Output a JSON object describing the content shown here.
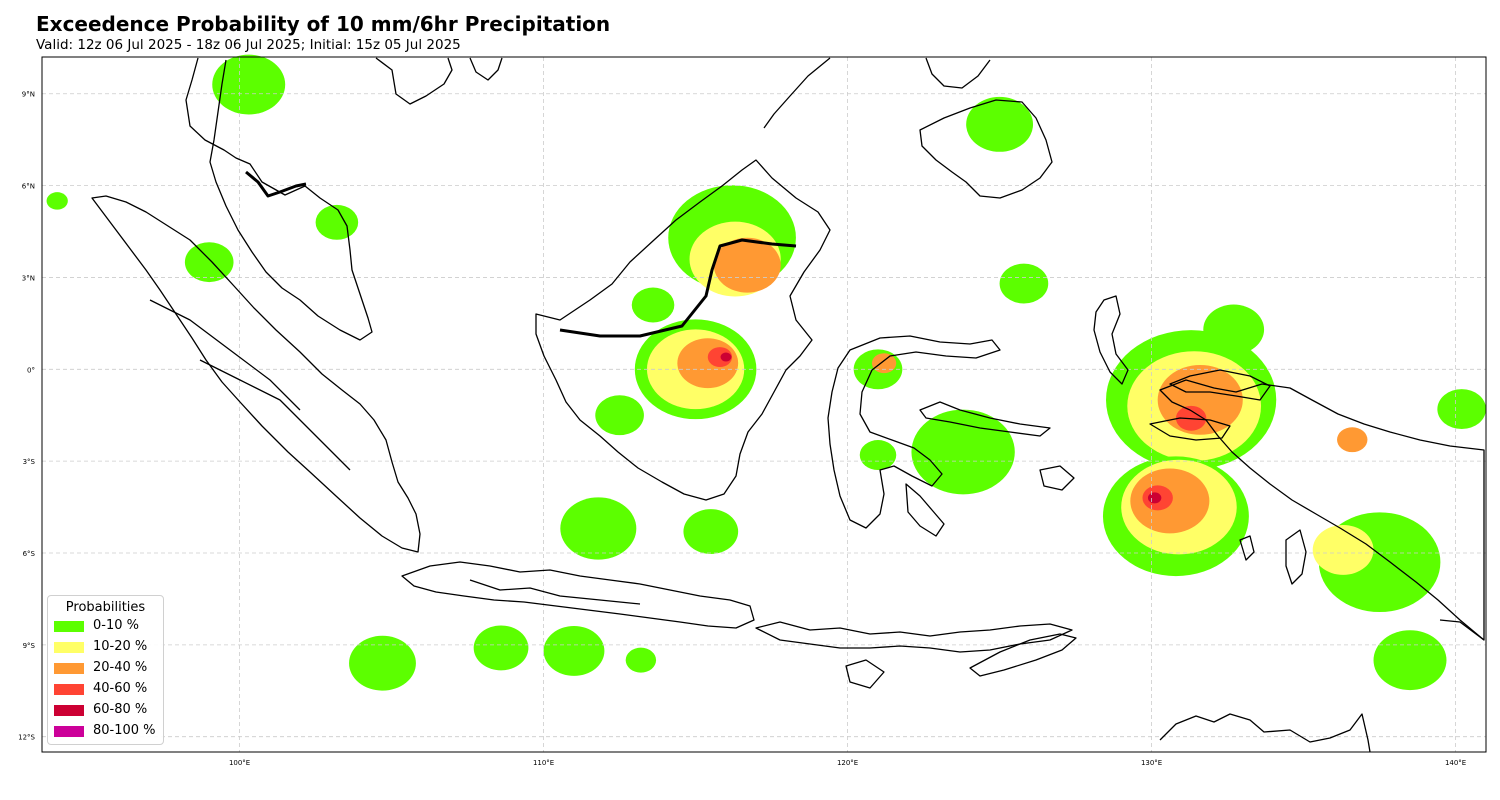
{
  "header": {
    "title": "Exceedence Probability of 10 mm/6hr Precipitation",
    "subtitle": "Valid: 12z 06 Jul 2025 - 18z 06 Jul 2025; Initial: 15z 05 Jul 2025"
  },
  "map": {
    "lon_range": [
      93.5,
      141.0
    ],
    "lat_range": [
      -12.5,
      10.2
    ],
    "lon_ticks": [
      {
        "value": 100,
        "label": "100°E"
      },
      {
        "value": 110,
        "label": "110°E"
      },
      {
        "value": 120,
        "label": "120°E"
      },
      {
        "value": 130,
        "label": "130°E"
      },
      {
        "value": 140,
        "label": "140°E"
      }
    ],
    "lat_ticks": [
      {
        "value": 9,
        "label": "9°N"
      },
      {
        "value": 6,
        "label": "6°N"
      },
      {
        "value": 3,
        "label": "3°N"
      },
      {
        "value": 0,
        "label": "0°"
      },
      {
        "value": -3,
        "label": "3°S"
      },
      {
        "value": -6,
        "label": "6°S"
      },
      {
        "value": -9,
        "label": "9°S"
      },
      {
        "value": -12,
        "label": "12°S"
      }
    ],
    "grid": true,
    "gridline_color": "#cccccc",
    "coastline_color": "#000000"
  },
  "legend": {
    "title": "Probabilities",
    "placement": "lower-left",
    "items": [
      {
        "label": "0-10 %",
        "color": "#5cff00"
      },
      {
        "label": "10-20 %",
        "color": "#ffff66"
      },
      {
        "label": "20-40 %",
        "color": "#ff9933"
      },
      {
        "label": "40-60 %",
        "color": "#ff4433"
      },
      {
        "label": "60-80 %",
        "color": "#cc0033"
      },
      {
        "label": "80-100 %",
        "color": "#cc0099"
      }
    ]
  },
  "precip_areas": [
    {
      "name": "w-sumatra",
      "cls": 0,
      "lon": 94.0,
      "lat": 5.5,
      "r": 0.35
    },
    {
      "name": "malaya-nw",
      "cls": 0,
      "lon": 100.3,
      "lat": 9.3,
      "r": 1.2
    },
    {
      "name": "malaya-e",
      "cls": 0,
      "lon": 103.2,
      "lat": 4.8,
      "r": 0.7
    },
    {
      "name": "n-sumatra",
      "cls": 0,
      "lon": 99.0,
      "lat": 3.5,
      "r": 0.8
    },
    {
      "name": "borneo-nw",
      "cls": 0,
      "lon": 113.6,
      "lat": 2.1,
      "r": 0.7
    },
    {
      "name": "borneo-n",
      "cls": 0,
      "lon": 116.2,
      "lat": 4.3,
      "r": 2.1
    },
    {
      "name": "borneo-n-y",
      "cls": 1,
      "lon": 116.3,
      "lat": 3.6,
      "r": 1.5
    },
    {
      "name": "borneo-n-o",
      "cls": 2,
      "lon": 116.7,
      "lat": 3.4,
      "r": 1.1
    },
    {
      "name": "borneo-c",
      "cls": 0,
      "lon": 115.0,
      "lat": 0.0,
      "r": 2.0
    },
    {
      "name": "borneo-c-y",
      "cls": 1,
      "lon": 115.0,
      "lat": 0.0,
      "r": 1.6
    },
    {
      "name": "borneo-c-o",
      "cls": 2,
      "lon": 115.4,
      "lat": 0.2,
      "r": 1.0
    },
    {
      "name": "borneo-c-r",
      "cls": 3,
      "lon": 115.8,
      "lat": 0.4,
      "r": 0.4
    },
    {
      "name": "borneo-c-d",
      "cls": 4,
      "lon": 116.0,
      "lat": 0.4,
      "r": 0.18
    },
    {
      "name": "borneo-sw",
      "cls": 0,
      "lon": 112.5,
      "lat": -1.5,
      "r": 0.8
    },
    {
      "name": "java-sea-n",
      "cls": 0,
      "lon": 111.8,
      "lat": -5.2,
      "r": 1.25
    },
    {
      "name": "java-sea-e",
      "cls": 0,
      "lon": 115.5,
      "lat": -5.3,
      "r": 0.9
    },
    {
      "name": "south-a",
      "cls": 0,
      "lon": 104.7,
      "lat": -9.6,
      "r": 1.1
    },
    {
      "name": "south-b",
      "cls": 0,
      "lon": 108.6,
      "lat": -9.1,
      "r": 0.9
    },
    {
      "name": "south-c",
      "cls": 0,
      "lon": 111.0,
      "lat": -9.2,
      "r": 1.0
    },
    {
      "name": "south-d",
      "cls": 0,
      "lon": 113.2,
      "lat": -9.5,
      "r": 0.5
    },
    {
      "name": "sulawesi-n",
      "cls": 0,
      "lon": 121.0,
      "lat": 0.0,
      "r": 0.8
    },
    {
      "name": "sulawesi-n-o",
      "cls": 2,
      "lon": 121.2,
      "lat": 0.2,
      "r": 0.4
    },
    {
      "name": "sulawesi-c",
      "cls": 0,
      "lon": 121.0,
      "lat": -2.8,
      "r": 0.6
    },
    {
      "name": "molucca-sea",
      "cls": 0,
      "lon": 123.8,
      "lat": -2.7,
      "r": 1.7
    },
    {
      "name": "mindanao",
      "cls": 0,
      "lon": 125.0,
      "lat": 8.0,
      "r": 1.1
    },
    {
      "name": "halmahera",
      "cls": 0,
      "lon": 131.3,
      "lat": -1.0,
      "r": 2.8
    },
    {
      "name": "halmahera-y",
      "cls": 1,
      "lon": 131.4,
      "lat": -1.2,
      "r": 2.2
    },
    {
      "name": "halmahera-o",
      "cls": 2,
      "lon": 131.6,
      "lat": -1.0,
      "r": 1.4
    },
    {
      "name": "halmahera-r",
      "cls": 3,
      "lon": 131.3,
      "lat": -1.6,
      "r": 0.5
    },
    {
      "name": "banda-sea",
      "cls": 0,
      "lon": 130.8,
      "lat": -4.8,
      "r": 2.4
    },
    {
      "name": "banda-sea-y",
      "cls": 1,
      "lon": 130.9,
      "lat": -4.5,
      "r": 1.9
    },
    {
      "name": "banda-sea-o",
      "cls": 2,
      "lon": 130.6,
      "lat": -4.3,
      "r": 1.3
    },
    {
      "name": "banda-sea-r",
      "cls": 3,
      "lon": 130.2,
      "lat": -4.2,
      "r": 0.5
    },
    {
      "name": "banda-sea-d",
      "cls": 4,
      "lon": 130.1,
      "lat": -4.2,
      "r": 0.22
    },
    {
      "name": "papua-s",
      "cls": 0,
      "lon": 137.5,
      "lat": -6.3,
      "r": 2.0
    },
    {
      "name": "papua-s-y",
      "cls": 1,
      "lon": 136.3,
      "lat": -5.9,
      "r": 1.0
    },
    {
      "name": "papua-ne",
      "cls": 0,
      "lon": 140.2,
      "lat": -1.3,
      "r": 0.8
    },
    {
      "name": "papua-nw",
      "cls": 0,
      "lon": 132.7,
      "lat": 1.3,
      "r": 1.0
    },
    {
      "name": "papua-n-o",
      "cls": 2,
      "lon": 136.6,
      "lat": -2.3,
      "r": 0.5
    },
    {
      "name": "timor-sea",
      "cls": 0,
      "lon": 138.5,
      "lat": -9.5,
      "r": 1.2
    },
    {
      "name": "sulawesi-sea",
      "cls": 0,
      "lon": 125.8,
      "lat": 2.8,
      "r": 0.8
    }
  ]
}
